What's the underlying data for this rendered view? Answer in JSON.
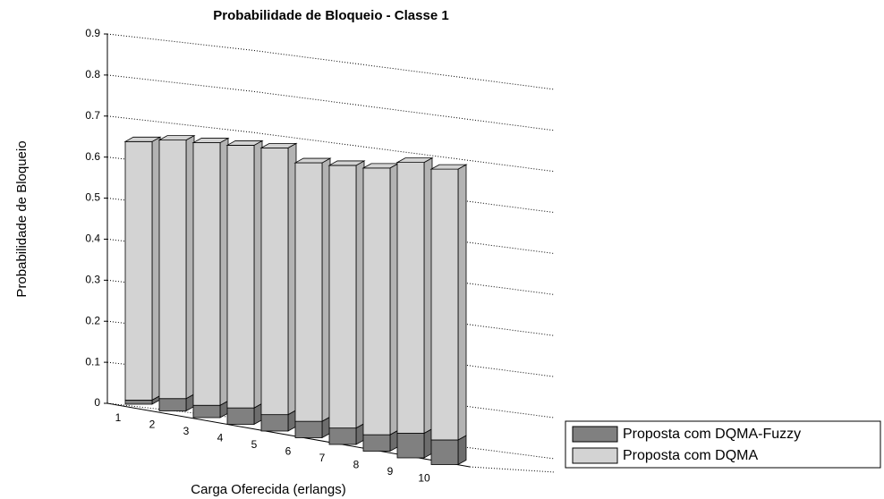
{
  "chart_data": {
    "type": "bar3d_stacked",
    "title": "Probabilidade de Bloqueio - Classe 1",
    "x_label": "Carga Oferecida (erlangs)",
    "y_label": "Probabilidade de Bloqueio",
    "categories": [
      "1",
      "2",
      "3",
      "4",
      "5",
      "6",
      "7",
      "8",
      "9",
      "10"
    ],
    "series": [
      {
        "name": "Proposta com DQMA-Fuzzy",
        "color": "#808080",
        "values": [
          0.01,
          0.03,
          0.03,
          0.04,
          0.04,
          0.04,
          0.04,
          0.04,
          0.06,
          0.06
        ]
      },
      {
        "name": "Proposta com DQMA",
        "color": "#d3d3d3",
        "values": [
          0.63,
          0.63,
          0.64,
          0.64,
          0.65,
          0.63,
          0.64,
          0.65,
          0.66,
          0.66
        ]
      }
    ],
    "ylim": [
      0,
      0.9
    ],
    "yticks": [
      0,
      0.1,
      0.2,
      0.3,
      0.4,
      0.5,
      0.6,
      0.7,
      0.8,
      0.9
    ],
    "grid": true,
    "legend": "lower right"
  }
}
